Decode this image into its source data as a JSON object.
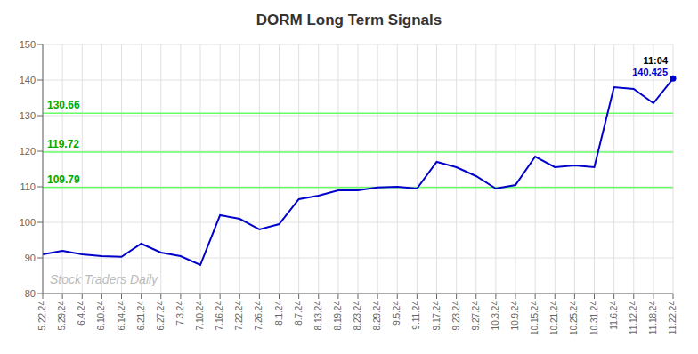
{
  "chart_data": {
    "type": "line",
    "title": "DORM Long Term Signals",
    "categories": [
      "5.22.24",
      "5.29.24",
      "6.4.24",
      "6.10.24",
      "6.14.24",
      "6.21.24",
      "6.27.24",
      "7.3.24",
      "7.10.24",
      "7.16.24",
      "7.22.24",
      "7.26.24",
      "8.1.24",
      "8.7.24",
      "8.13.24",
      "8.19.24",
      "8.23.24",
      "8.29.24",
      "9.5.24",
      "9.11.24",
      "9.17.24",
      "9.23.24",
      "9.27.24",
      "10.3.24",
      "10.9.24",
      "10.15.24",
      "10.21.24",
      "10.25.24",
      "10.31.24",
      "11.6.24",
      "11.12.24",
      "11.18.24",
      "11.22.24"
    ],
    "values": [
      91.0,
      92.0,
      91.0,
      90.5,
      90.3,
      94.0,
      91.5,
      90.5,
      88.0,
      102.0,
      101.0,
      98.0,
      99.5,
      106.5,
      107.5,
      109.0,
      109.0,
      109.79,
      110.0,
      109.5,
      117.0,
      115.5,
      113.0,
      109.5,
      110.5,
      118.5,
      115.5,
      116.0,
      115.5,
      138.0,
      137.5,
      133.5,
      140.425
    ],
    "color": "#0000cc",
    "ylim": [
      80,
      150
    ],
    "yticks": [
      80,
      90,
      100,
      110,
      120,
      130,
      140,
      150
    ],
    "grid": true,
    "hlines": [
      109.79,
      119.72,
      130.66
    ],
    "hline_labels": [
      "109.79",
      "119.72",
      "130.66"
    ],
    "hline_color": "#66ff66",
    "hline_label_color": "#00aa00",
    "end_label_time": "11:04",
    "end_label_value": "140.425",
    "watermark": "Stock Traders Daily",
    "watermark_color": "#bbbbbb"
  }
}
